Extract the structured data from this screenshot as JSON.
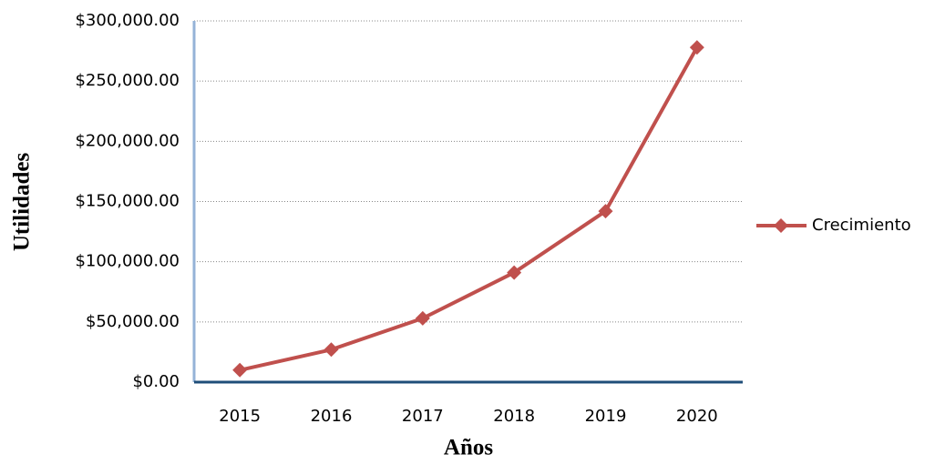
{
  "chart_data": {
    "type": "line",
    "x_label": "Años",
    "y_label": "Utilidades",
    "categories": [
      "2015",
      "2016",
      "2017",
      "2018",
      "2019",
      "2020"
    ],
    "series": [
      {
        "name": "Crecimiento",
        "color": "#c0504d",
        "values": [
          10000,
          27000,
          53000,
          91000,
          142000,
          278000
        ]
      }
    ],
    "ylim": [
      0,
      300000
    ],
    "yticks": [
      {
        "value": 0,
        "label": "$0.00"
      },
      {
        "value": 50000,
        "label": "$50,000.00"
      },
      {
        "value": 100000,
        "label": "$100,000.00"
      },
      {
        "value": 150000,
        "label": "$150,000.00"
      },
      {
        "value": 200000,
        "label": "$200,000.00"
      },
      {
        "value": 250000,
        "label": "$250,000.00"
      },
      {
        "value": 300000,
        "label": "$300,000.00"
      }
    ],
    "grid": true,
    "legend": "right"
  }
}
